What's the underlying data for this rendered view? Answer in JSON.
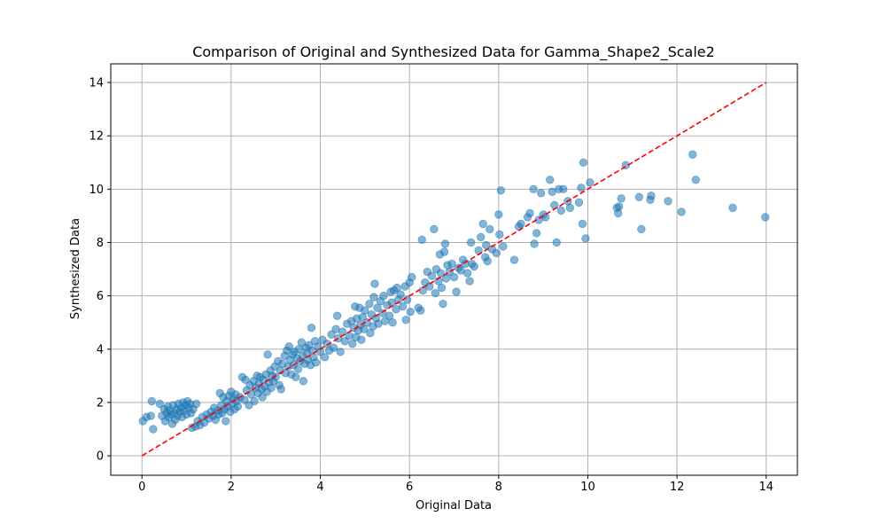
{
  "chart_data": {
    "type": "scatter",
    "title": "Comparison of Original and Synthesized Data for Gamma_Shape2_Scale2",
    "xlabel": "Original Data",
    "ylabel": "Synthesized Data",
    "xlim": [
      -0.7,
      14.7
    ],
    "ylim": [
      -0.73,
      14.7
    ],
    "x_ticks": [
      0,
      2,
      4,
      6,
      8,
      10,
      12,
      14
    ],
    "y_ticks": [
      0,
      2,
      4,
      6,
      8,
      10,
      12,
      14
    ],
    "grid": true,
    "colors": {
      "points": "#1f77b4",
      "reference_line": "#ff0000"
    },
    "reference_line": {
      "style": "dashed",
      "from": [
        0,
        0
      ],
      "to": [
        14,
        14
      ]
    },
    "series": [
      {
        "values": [
          [
            0.02,
            1.3
          ],
          [
            0.1,
            1.45
          ],
          [
            0.2,
            1.5
          ],
          [
            0.22,
            2.05
          ],
          [
            0.25,
            1.0
          ],
          [
            0.4,
            1.95
          ],
          [
            0.45,
            1.5
          ],
          [
            0.5,
            1.75
          ],
          [
            0.52,
            1.3
          ],
          [
            0.55,
            1.6
          ],
          [
            0.58,
            1.85
          ],
          [
            0.6,
            1.45
          ],
          [
            0.62,
            1.7
          ],
          [
            0.65,
            1.55
          ],
          [
            0.68,
            1.2
          ],
          [
            0.7,
            1.9
          ],
          [
            0.72,
            1.6
          ],
          [
            0.75,
            1.35
          ],
          [
            0.78,
            1.75
          ],
          [
            0.8,
            1.5
          ],
          [
            0.82,
            1.95
          ],
          [
            0.85,
            1.65
          ],
          [
            0.88,
            1.8
          ],
          [
            0.9,
            1.45
          ],
          [
            0.92,
            2.0
          ],
          [
            0.95,
            1.7
          ],
          [
            0.98,
            1.9
          ],
          [
            1.0,
            1.55
          ],
          [
            1.02,
            2.05
          ],
          [
            1.05,
            1.8
          ],
          [
            1.08,
            1.95
          ],
          [
            1.1,
            1.6
          ],
          [
            1.12,
            1.05
          ],
          [
            1.15,
            1.75
          ],
          [
            1.2,
            1.1
          ],
          [
            1.22,
            1.95
          ],
          [
            1.25,
            1.3
          ],
          [
            1.3,
            1.15
          ],
          [
            1.35,
            1.45
          ],
          [
            1.4,
            1.25
          ],
          [
            1.45,
            1.55
          ],
          [
            1.5,
            1.4
          ],
          [
            1.55,
            1.65
          ],
          [
            1.6,
            1.5
          ],
          [
            1.62,
            1.8
          ],
          [
            1.65,
            1.35
          ],
          [
            1.7,
            1.7
          ],
          [
            1.72,
            1.55
          ],
          [
            1.75,
            2.35
          ],
          [
            1.78,
            1.9
          ],
          [
            1.8,
            1.6
          ],
          [
            1.82,
            2.2
          ],
          [
            1.85,
            1.75
          ],
          [
            1.88,
            1.3
          ],
          [
            1.9,
            2.05
          ],
          [
            1.92,
            1.85
          ],
          [
            1.95,
            2.25
          ],
          [
            1.98,
            1.65
          ],
          [
            2.0,
            2.4
          ],
          [
            2.02,
            1.95
          ],
          [
            2.05,
            2.15
          ],
          [
            2.08,
            1.75
          ],
          [
            2.1,
            2.3
          ],
          [
            2.12,
            2.05
          ],
          [
            2.15,
            1.85
          ],
          [
            2.2,
            2.2
          ],
          [
            2.25,
            2.95
          ],
          [
            2.3,
            2.1
          ],
          [
            2.32,
            2.85
          ],
          [
            2.35,
            2.45
          ],
          [
            2.4,
            1.9
          ],
          [
            2.42,
            2.65
          ],
          [
            2.45,
            2.3
          ],
          [
            2.5,
            2.8
          ],
          [
            2.52,
            2.05
          ],
          [
            2.55,
            2.55
          ],
          [
            2.58,
            3.0
          ],
          [
            2.6,
            2.35
          ],
          [
            2.62,
            2.7
          ],
          [
            2.65,
            2.95
          ],
          [
            2.68,
            2.5
          ],
          [
            2.7,
            2.2
          ],
          [
            2.72,
            2.85
          ],
          [
            2.75,
            2.6
          ],
          [
            2.78,
            3.05
          ],
          [
            2.8,
            2.4
          ],
          [
            2.82,
            3.8
          ],
          [
            2.85,
            2.75
          ],
          [
            2.88,
            3.2
          ],
          [
            2.9,
            2.55
          ],
          [
            2.92,
            3.0
          ],
          [
            2.95,
            2.8
          ],
          [
            2.98,
            3.35
          ],
          [
            3.0,
            2.95
          ],
          [
            3.05,
            3.55
          ],
          [
            3.08,
            2.65
          ],
          [
            3.1,
            3.2
          ],
          [
            3.12,
            2.5
          ],
          [
            3.15,
            3.45
          ],
          [
            3.2,
            3.75
          ],
          [
            3.22,
            3.1
          ],
          [
            3.25,
            3.95
          ],
          [
            3.28,
            3.35
          ],
          [
            3.3,
            4.1
          ],
          [
            3.32,
            3.6
          ],
          [
            3.35,
            3.05
          ],
          [
            3.38,
            3.8
          ],
          [
            3.4,
            3.4
          ],
          [
            3.42,
            3.9
          ],
          [
            3.45,
            2.95
          ],
          [
            3.48,
            3.65
          ],
          [
            3.5,
            3.25
          ],
          [
            3.52,
            4.0
          ],
          [
            3.55,
            3.55
          ],
          [
            3.58,
            4.25
          ],
          [
            3.6,
            3.75
          ],
          [
            3.62,
            2.8
          ],
          [
            3.65,
            3.45
          ],
          [
            3.68,
            4.05
          ],
          [
            3.7,
            3.85
          ],
          [
            3.72,
            3.6
          ],
          [
            3.75,
            4.15
          ],
          [
            3.78,
            3.4
          ],
          [
            3.8,
            4.8
          ],
          [
            3.82,
            3.95
          ],
          [
            3.85,
            3.7
          ],
          [
            3.88,
            4.3
          ],
          [
            3.9,
            3.5
          ],
          [
            3.95,
            4.1
          ],
          [
            4.0,
            3.9
          ],
          [
            4.05,
            4.35
          ],
          [
            4.1,
            3.7
          ],
          [
            4.15,
            4.2
          ],
          [
            4.2,
            3.95
          ],
          [
            4.25,
            4.55
          ],
          [
            4.3,
            4.05
          ],
          [
            4.35,
            4.75
          ],
          [
            4.38,
            5.25
          ],
          [
            4.4,
            4.4
          ],
          [
            4.45,
            3.9
          ],
          [
            4.5,
            4.65
          ],
          [
            4.55,
            4.3
          ],
          [
            4.6,
            4.95
          ],
          [
            4.65,
            4.5
          ],
          [
            4.7,
            5.05
          ],
          [
            4.72,
            4.2
          ],
          [
            4.75,
            4.8
          ],
          [
            4.78,
            5.6
          ],
          [
            4.8,
            4.45
          ],
          [
            4.82,
            5.15
          ],
          [
            4.85,
            4.7
          ],
          [
            4.88,
            5.55
          ],
          [
            4.9,
            4.9
          ],
          [
            4.92,
            4.35
          ],
          [
            4.95,
            5.2
          ],
          [
            4.98,
            4.75
          ],
          [
            5.0,
            5.45
          ],
          [
            5.05,
            5.0
          ],
          [
            5.1,
            5.7
          ],
          [
            5.12,
            4.6
          ],
          [
            5.15,
            5.3
          ],
          [
            5.18,
            4.85
          ],
          [
            5.2,
            5.95
          ],
          [
            5.22,
            6.45
          ],
          [
            5.25,
            5.15
          ],
          [
            5.28,
            5.55
          ],
          [
            5.3,
            4.95
          ],
          [
            5.35,
            5.8
          ],
          [
            5.4,
            5.35
          ],
          [
            5.42,
            6.0
          ],
          [
            5.45,
            5.05
          ],
          [
            5.5,
            5.65
          ],
          [
            5.55,
            5.25
          ],
          [
            5.58,
            6.15
          ],
          [
            5.6,
            5.75
          ],
          [
            5.62,
            5.0
          ],
          [
            5.65,
            6.2
          ],
          [
            5.7,
            5.5
          ],
          [
            5.72,
            6.3
          ],
          [
            5.75,
            5.85
          ],
          [
            5.8,
            6.05
          ],
          [
            5.85,
            5.6
          ],
          [
            5.9,
            6.35
          ],
          [
            5.92,
            5.1
          ],
          [
            5.95,
            5.85
          ],
          [
            6.0,
            6.5
          ],
          [
            6.02,
            5.4
          ],
          [
            6.05,
            6.7
          ],
          [
            6.2,
            5.55
          ],
          [
            6.25,
            5.45
          ],
          [
            6.28,
            8.1
          ],
          [
            6.3,
            6.2
          ],
          [
            6.35,
            6.5
          ],
          [
            6.4,
            6.9
          ],
          [
            6.45,
            6.35
          ],
          [
            6.5,
            6.75
          ],
          [
            6.55,
            8.5
          ],
          [
            6.58,
            6.1
          ],
          [
            6.6,
            7.0
          ],
          [
            6.65,
            6.55
          ],
          [
            6.68,
            7.55
          ],
          [
            6.7,
            6.85
          ],
          [
            6.72,
            6.3
          ],
          [
            6.75,
            5.7
          ],
          [
            6.78,
            7.65
          ],
          [
            6.8,
            7.95
          ],
          [
            6.82,
            6.65
          ],
          [
            6.85,
            7.15
          ],
          [
            6.9,
            6.9
          ],
          [
            6.95,
            7.2
          ],
          [
            7.0,
            6.7
          ],
          [
            7.05,
            6.15
          ],
          [
            7.1,
            7.05
          ],
          [
            7.15,
            6.95
          ],
          [
            7.2,
            7.35
          ],
          [
            7.25,
            7.2
          ],
          [
            7.3,
            6.85
          ],
          [
            7.35,
            6.55
          ],
          [
            7.38,
            8.0
          ],
          [
            7.4,
            7.2
          ],
          [
            7.45,
            7.1
          ],
          [
            7.55,
            7.7
          ],
          [
            7.6,
            8.2
          ],
          [
            7.65,
            8.7
          ],
          [
            7.7,
            7.45
          ],
          [
            7.72,
            7.9
          ],
          [
            7.75,
            7.3
          ],
          [
            7.8,
            8.5
          ],
          [
            7.85,
            7.75
          ],
          [
            7.95,
            7.6
          ],
          [
            8.0,
            9.05
          ],
          [
            8.02,
            8.3
          ],
          [
            8.05,
            9.95
          ],
          [
            8.1,
            7.85
          ],
          [
            8.35,
            7.35
          ],
          [
            8.45,
            8.6
          ],
          [
            8.5,
            8.7
          ],
          [
            8.65,
            8.95
          ],
          [
            8.7,
            9.1
          ],
          [
            8.78,
            10.0
          ],
          [
            8.8,
            7.95
          ],
          [
            8.85,
            8.35
          ],
          [
            8.9,
            8.85
          ],
          [
            8.95,
            9.85
          ],
          [
            9.0,
            9.05
          ],
          [
            9.05,
            8.95
          ],
          [
            9.15,
            10.35
          ],
          [
            9.2,
            9.9
          ],
          [
            9.25,
            9.4
          ],
          [
            9.3,
            8.0
          ],
          [
            9.35,
            10.0
          ],
          [
            9.4,
            9.2
          ],
          [
            9.45,
            10.0
          ],
          [
            9.55,
            9.55
          ],
          [
            9.6,
            9.3
          ],
          [
            9.8,
            9.5
          ],
          [
            9.85,
            10.05
          ],
          [
            9.88,
            8.7
          ],
          [
            9.9,
            11.0
          ],
          [
            9.95,
            8.15
          ],
          [
            10.05,
            10.25
          ],
          [
            10.65,
            9.3
          ],
          [
            10.68,
            9.1
          ],
          [
            10.7,
            9.35
          ],
          [
            10.75,
            9.65
          ],
          [
            10.85,
            10.9
          ],
          [
            11.15,
            9.7
          ],
          [
            11.2,
            8.5
          ],
          [
            11.4,
            9.6
          ],
          [
            11.42,
            9.75
          ],
          [
            11.8,
            9.55
          ],
          [
            12.1,
            9.15
          ],
          [
            12.35,
            11.3
          ],
          [
            12.42,
            10.35
          ],
          [
            13.25,
            9.3
          ],
          [
            13.98,
            8.95
          ]
        ]
      }
    ]
  }
}
